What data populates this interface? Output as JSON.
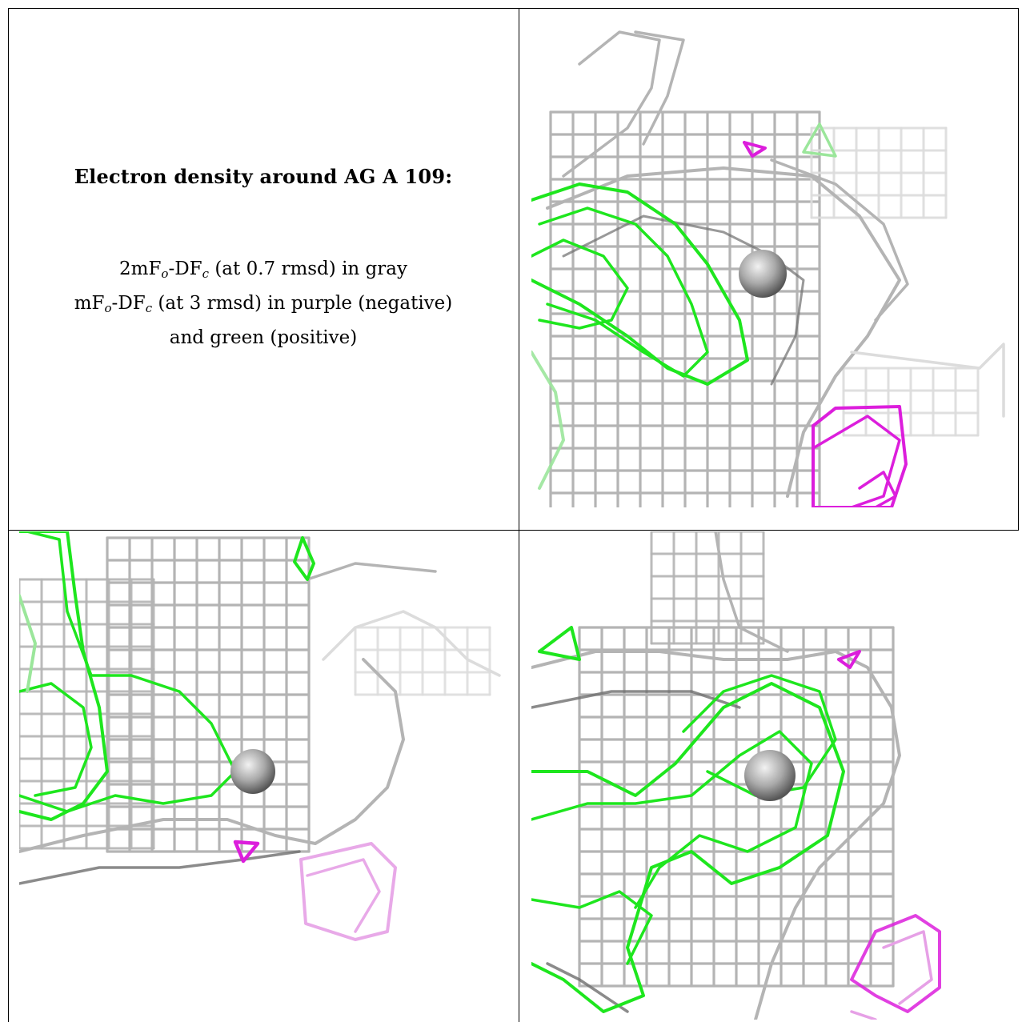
{
  "legend": {
    "title": "Electron density around AG A 109:",
    "line1": {
      "a": "2mF",
      "a_sub": "o",
      "b": "-DF",
      "b_sub": "c",
      "tail": " (at 0.7 rmsd) in gray"
    },
    "line2": {
      "a": "mF",
      "a_sub": "o",
      "b": "-DF",
      "b_sub": "c",
      "tail": " (at 3 rmsd) in purple (negative)"
    },
    "line3": "and green (positive)"
  },
  "colors": {
    "gray_mesh": "#b4b4b4",
    "dark_gray_mesh": "#6e6e6e",
    "light_gray_mesh": "#dcdcdc",
    "green_mesh": "#1ee61e",
    "light_green_mesh": "#9be69b",
    "purple_mesh": "#dc1edc",
    "light_purple_mesh": "#e6a0e6",
    "atom": "#a8a8a8"
  },
  "panels": [
    {
      "view": "top-right"
    },
    {
      "view": "bottom-left"
    },
    {
      "view": "bottom-right"
    }
  ]
}
